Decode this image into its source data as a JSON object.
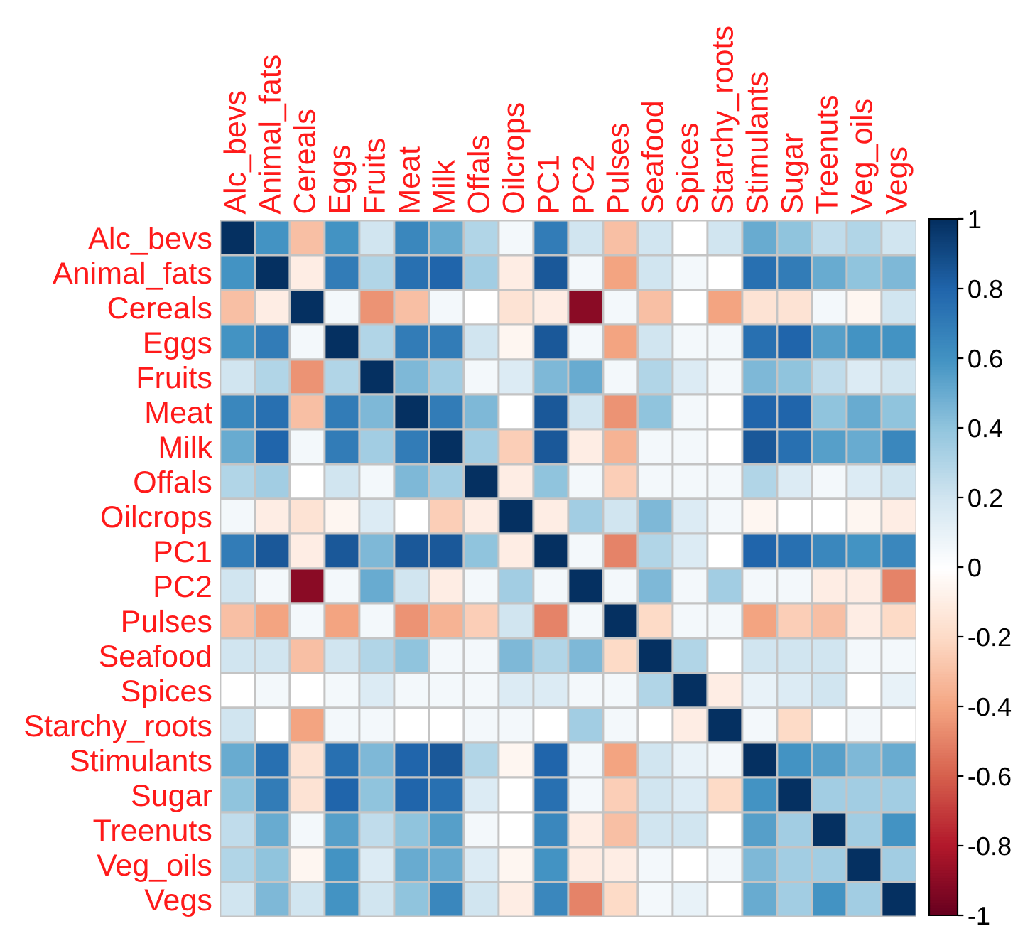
{
  "chart_data": {
    "type": "heatmap",
    "categories": [
      "Alc_bevs",
      "Animal_fats",
      "Cereals",
      "Eggs",
      "Fruits",
      "Meat",
      "Milk",
      "Offals",
      "Oilcrops",
      "PC1",
      "PC2",
      "Pulses",
      "Seafood",
      "Spices",
      "Starchy_roots",
      "Stimulants",
      "Sugar",
      "Treenuts",
      "Veg_oils",
      "Vegs"
    ],
    "y_categories": [
      "Alc_bevs",
      "Animal_fats",
      "Cereals",
      "Eggs",
      "Fruits",
      "Meat",
      "Milk",
      "Offals",
      "Oilcrops",
      "PC1",
      "PC2",
      "Pulses",
      "Seafood",
      "Spices",
      "Starchy_roots",
      "Stimulants",
      "Sugar",
      "Treenuts",
      "Veg_oils",
      "Vegs"
    ],
    "cells": [
      [
        1,
        0.6,
        -0.3,
        0.6,
        0.2,
        0.65,
        0.5,
        0.3,
        0.05,
        0.7,
        0.2,
        -0.3,
        0.2,
        null,
        0.2,
        0.5,
        0.4,
        0.25,
        0.3,
        0.2
      ],
      [
        0.6,
        1,
        -0.1,
        0.7,
        0.3,
        0.75,
        0.8,
        0.35,
        -0.1,
        0.85,
        0.05,
        -0.4,
        0.2,
        0.05,
        null,
        0.75,
        0.7,
        0.5,
        0.4,
        0.45
      ],
      [
        -0.3,
        -0.1,
        1,
        0.05,
        -0.45,
        -0.3,
        0.05,
        null,
        -0.15,
        -0.1,
        -0.9,
        0.05,
        -0.3,
        null,
        -0.4,
        -0.15,
        -0.15,
        0.05,
        -0.05,
        0.2
      ],
      [
        0.6,
        0.7,
        0.05,
        1,
        0.3,
        0.7,
        0.7,
        0.2,
        -0.05,
        0.85,
        0.05,
        -0.4,
        0.2,
        0.05,
        0.05,
        0.75,
        0.8,
        0.55,
        0.6,
        0.6
      ],
      [
        0.2,
        0.3,
        -0.45,
        0.3,
        1,
        0.45,
        0.35,
        0.05,
        0.15,
        0.45,
        0.5,
        0.05,
        0.3,
        0.15,
        0.05,
        0.45,
        0.4,
        0.25,
        0.15,
        0.2
      ],
      [
        0.65,
        0.75,
        -0.3,
        0.7,
        0.45,
        1,
        0.7,
        0.45,
        null,
        0.85,
        0.2,
        -0.45,
        0.4,
        0.05,
        null,
        0.8,
        0.8,
        0.4,
        0.5,
        0.4
      ],
      [
        0.5,
        0.8,
        0.05,
        0.7,
        0.35,
        0.7,
        1,
        0.35,
        -0.25,
        0.85,
        -0.1,
        -0.35,
        0.05,
        0.05,
        null,
        0.85,
        0.75,
        0.55,
        0.5,
        0.65
      ],
      [
        0.3,
        0.35,
        null,
        0.2,
        0.05,
        0.45,
        0.35,
        1,
        -0.1,
        0.4,
        0.05,
        -0.25,
        0.05,
        0.05,
        0.05,
        0.3,
        0.15,
        0.05,
        0.15,
        0.2
      ],
      [
        0.05,
        -0.1,
        -0.15,
        -0.05,
        0.15,
        null,
        -0.25,
        -0.1,
        1,
        -0.1,
        0.35,
        0.2,
        0.45,
        0.15,
        0.05,
        -0.05,
        null,
        null,
        -0.05,
        -0.1
      ],
      [
        0.7,
        0.85,
        -0.1,
        0.85,
        0.45,
        0.85,
        0.85,
        0.4,
        -0.1,
        1,
        0.05,
        -0.5,
        0.3,
        0.15,
        null,
        0.8,
        0.75,
        0.65,
        0.6,
        0.65
      ],
      [
        0.2,
        0.05,
        -0.9,
        0.05,
        0.5,
        0.2,
        -0.1,
        0.05,
        0.35,
        0.05,
        1,
        0.05,
        0.45,
        0.05,
        0.35,
        0.05,
        0.05,
        -0.1,
        -0.1,
        -0.5
      ],
      [
        -0.3,
        -0.4,
        0.05,
        -0.4,
        0.05,
        -0.45,
        -0.35,
        -0.25,
        0.2,
        -0.5,
        0.05,
        1,
        -0.2,
        0.05,
        0.05,
        -0.4,
        -0.25,
        -0.3,
        -0.1,
        -0.2
      ],
      [
        0.2,
        0.2,
        -0.3,
        0.2,
        0.3,
        0.4,
        0.05,
        0.05,
        0.45,
        0.3,
        0.45,
        -0.2,
        1,
        0.3,
        null,
        0.2,
        0.2,
        0.2,
        0.05,
        0.05
      ],
      [
        null,
        0.05,
        null,
        0.05,
        0.15,
        0.05,
        0.05,
        0.05,
        0.15,
        0.15,
        0.05,
        0.05,
        0.3,
        1,
        -0.1,
        0.1,
        0.15,
        0.2,
        null,
        0.1
      ],
      [
        0.2,
        null,
        -0.4,
        0.05,
        0.05,
        null,
        null,
        0.05,
        0.05,
        null,
        0.35,
        0.05,
        null,
        -0.1,
        1,
        0.05,
        -0.2,
        null,
        0.05,
        null
      ],
      [
        0.5,
        0.75,
        -0.15,
        0.75,
        0.45,
        0.8,
        0.85,
        0.3,
        -0.05,
        0.8,
        0.05,
        -0.4,
        0.2,
        0.1,
        0.05,
        1,
        0.6,
        0.55,
        0.45,
        0.5
      ],
      [
        0.4,
        0.7,
        -0.15,
        0.8,
        0.4,
        0.8,
        0.75,
        0.15,
        null,
        0.75,
        0.05,
        -0.25,
        0.2,
        0.15,
        -0.2,
        0.6,
        1,
        0.35,
        0.35,
        0.35
      ],
      [
        0.25,
        0.5,
        0.05,
        0.55,
        0.25,
        0.4,
        0.55,
        0.05,
        null,
        0.65,
        -0.1,
        -0.3,
        0.2,
        0.2,
        null,
        0.55,
        0.35,
        1,
        0.35,
        0.6
      ],
      [
        0.3,
        0.4,
        -0.05,
        0.6,
        0.15,
        0.5,
        0.5,
        0.15,
        -0.05,
        0.6,
        -0.1,
        -0.1,
        0.05,
        null,
        0.05,
        0.45,
        0.35,
        0.35,
        1,
        0.35
      ],
      [
        0.2,
        0.45,
        0.2,
        0.6,
        0.2,
        0.4,
        0.65,
        0.2,
        -0.1,
        0.65,
        -0.5,
        -0.2,
        0.05,
        0.1,
        null,
        0.5,
        0.35,
        0.6,
        0.35,
        1
      ]
    ],
    "clim": [
      -1,
      1
    ],
    "cticks": [
      1,
      0.8,
      0.6,
      0.4,
      0.2,
      0,
      -0.2,
      -0.4,
      -0.6,
      -0.8,
      -1
    ]
  }
}
